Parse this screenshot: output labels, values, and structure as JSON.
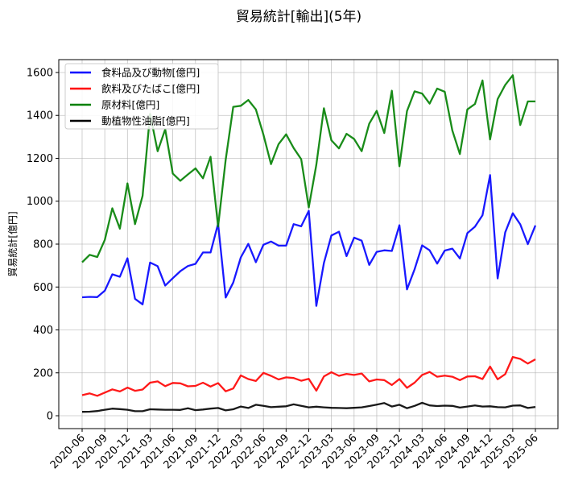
{
  "chart_data": {
    "type": "line",
    "title": "貿易統計[輸出](5年)",
    "xlabel": "",
    "ylabel": "貿易統計[億円]",
    "ylim": [
      -60,
      1660
    ],
    "yticks": [
      0,
      200,
      400,
      600,
      800,
      1000,
      1200,
      1400,
      1600
    ],
    "grid": true,
    "legend_position": "top-left",
    "x": [
      "2020-06",
      "2020-07",
      "2020-08",
      "2020-09",
      "2020-10",
      "2020-11",
      "2020-12",
      "2021-01",
      "2021-02",
      "2021-03",
      "2021-04",
      "2021-05",
      "2021-06",
      "2021-07",
      "2021-08",
      "2021-09",
      "2021-10",
      "2021-11",
      "2021-12",
      "2022-01",
      "2022-02",
      "2022-03",
      "2022-04",
      "2022-05",
      "2022-06",
      "2022-07",
      "2022-08",
      "2022-09",
      "2022-10",
      "2022-11",
      "2022-12",
      "2023-01",
      "2023-02",
      "2023-03",
      "2023-04",
      "2023-05",
      "2023-06",
      "2023-07",
      "2023-08",
      "2023-09",
      "2023-10",
      "2023-11",
      "2023-12",
      "2024-01",
      "2024-02",
      "2024-03",
      "2024-04",
      "2024-05",
      "2024-06",
      "2024-07",
      "2024-08",
      "2024-09",
      "2024-10",
      "2024-11",
      "2024-12",
      "2025-01",
      "2025-02",
      "2025-03",
      "2025-04",
      "2025-05",
      "2025-06"
    ],
    "xtick_labels": [
      "2020-06",
      "2020-09",
      "2020-12",
      "2021-03",
      "2021-06",
      "2021-09",
      "2021-12",
      "2022-03",
      "2022-06",
      "2022-09",
      "2022-12",
      "2023-03",
      "2023-06",
      "2023-09",
      "2023-12",
      "2024-03",
      "2024-06",
      "2024-09",
      "2024-12",
      "2025-03",
      "2025-06"
    ],
    "series": [
      {
        "name": "食料品及び動物[億円]",
        "color": "#0000ff",
        "values": [
          552,
          554,
          553,
          583,
          659,
          648,
          734,
          545,
          519,
          714,
          697,
          607,
          641,
          674,
          698,
          708,
          761,
          761,
          895,
          551,
          621,
          738,
          801,
          716,
          797,
          812,
          793,
          793,
          893,
          883,
          955,
          512,
          712,
          840,
          858,
          744,
          830,
          816,
          703,
          764,
          771,
          768,
          888,
          589,
          682,
          794,
          771,
          709,
          770,
          779,
          733,
          851,
          881,
          935,
          1122,
          640,
          855,
          944,
          892,
          800,
          887
        ]
      },
      {
        "name": "飲料及びたばこ[億円]",
        "color": "#ff0000",
        "values": [
          96,
          104,
          93,
          108,
          123,
          113,
          131,
          116,
          122,
          154,
          160,
          138,
          153,
          151,
          137,
          139,
          154,
          136,
          152,
          114,
          127,
          188,
          171,
          162,
          200,
          186,
          169,
          179,
          176,
          163,
          172,
          117,
          183,
          203,
          186,
          195,
          190,
          197,
          160,
          169,
          166,
          143,
          171,
          130,
          154,
          190,
          204,
          182,
          187,
          182,
          166,
          183,
          184,
          171,
          229,
          170,
          194,
          274,
          265,
          243,
          263
        ]
      },
      {
        "name": "原材料[億円]",
        "color": "#008000",
        "values": [
          715,
          750,
          740,
          820,
          967,
          872,
          1083,
          893,
          1025,
          1407,
          1233,
          1335,
          1129,
          1095,
          1125,
          1153,
          1107,
          1207,
          882,
          1193,
          1440,
          1445,
          1472,
          1428,
          1310,
          1173,
          1266,
          1312,
          1248,
          1196,
          971,
          1170,
          1433,
          1284,
          1246,
          1314,
          1290,
          1233,
          1361,
          1421,
          1318,
          1515,
          1163,
          1420,
          1512,
          1502,
          1455,
          1525,
          1510,
          1330,
          1220,
          1428,
          1453,
          1563,
          1288,
          1476,
          1542,
          1587,
          1355,
          1465,
          1465
        ]
      },
      {
        "name": "動植物性油脂[億円]",
        "color": "#000000",
        "values": [
          18,
          19,
          22,
          28,
          33,
          31,
          28,
          21,
          21,
          30,
          29,
          28,
          28,
          27,
          35,
          26,
          29,
          33,
          36,
          25,
          30,
          43,
          36,
          51,
          46,
          40,
          42,
          44,
          53,
          46,
          39,
          42,
          39,
          37,
          36,
          35,
          37,
          39,
          45,
          52,
          59,
          43,
          51,
          35,
          46,
          60,
          48,
          45,
          47,
          46,
          38,
          43,
          48,
          43,
          44,
          40,
          39,
          47,
          48,
          36,
          41
        ]
      }
    ]
  }
}
